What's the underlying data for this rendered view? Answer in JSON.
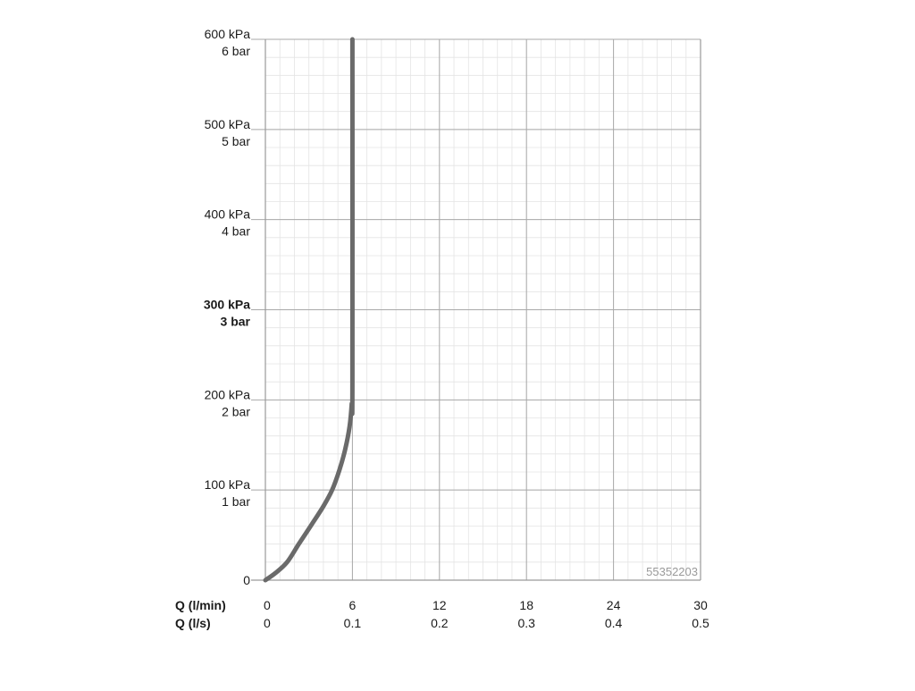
{
  "chart_data": {
    "type": "line",
    "x_unit_primary": "Q (l/min)",
    "x_unit_secondary": "Q (l/s)",
    "xlim": [
      0,
      30
    ],
    "ylim": [
      0,
      600
    ],
    "x_ticks_lmin": [
      "0",
      "6",
      "12",
      "18",
      "24",
      "30"
    ],
    "x_ticks_ls": [
      "0",
      "0.1",
      "0.2",
      "0.3",
      "0.4",
      "0.5"
    ],
    "y_ticks": [
      {
        "value": 0,
        "kpa": "0",
        "bar": "",
        "bold": false
      },
      {
        "value": 100,
        "kpa": "100 kPa",
        "bar": "1 bar",
        "bold": false
      },
      {
        "value": 200,
        "kpa": "200 kPa",
        "bar": "2 bar",
        "bold": false
      },
      {
        "value": 300,
        "kpa": "300 kPa",
        "bar": "3 bar",
        "bold": true
      },
      {
        "value": 400,
        "kpa": "400 kPa",
        "bar": "4 bar",
        "bold": false
      },
      {
        "value": 500,
        "kpa": "500 kPa",
        "bar": "5 bar",
        "bold": false
      },
      {
        "value": 600,
        "kpa": "600 kPa",
        "bar": "6 bar",
        "bold": false
      }
    ],
    "grid": true,
    "series": [
      {
        "color": "#6a6a6a",
        "x": [
          0,
          0.7,
          1.5,
          2.3,
          3.2,
          4.0,
          4.6,
          5.1,
          5.5,
          5.8,
          5.95,
          6.0,
          6.0
        ],
        "y": [
          0,
          8,
          20,
          40,
          62,
          82,
          100,
          122,
          145,
          170,
          195,
          220,
          600
        ]
      }
    ],
    "watermark": "55352203"
  }
}
